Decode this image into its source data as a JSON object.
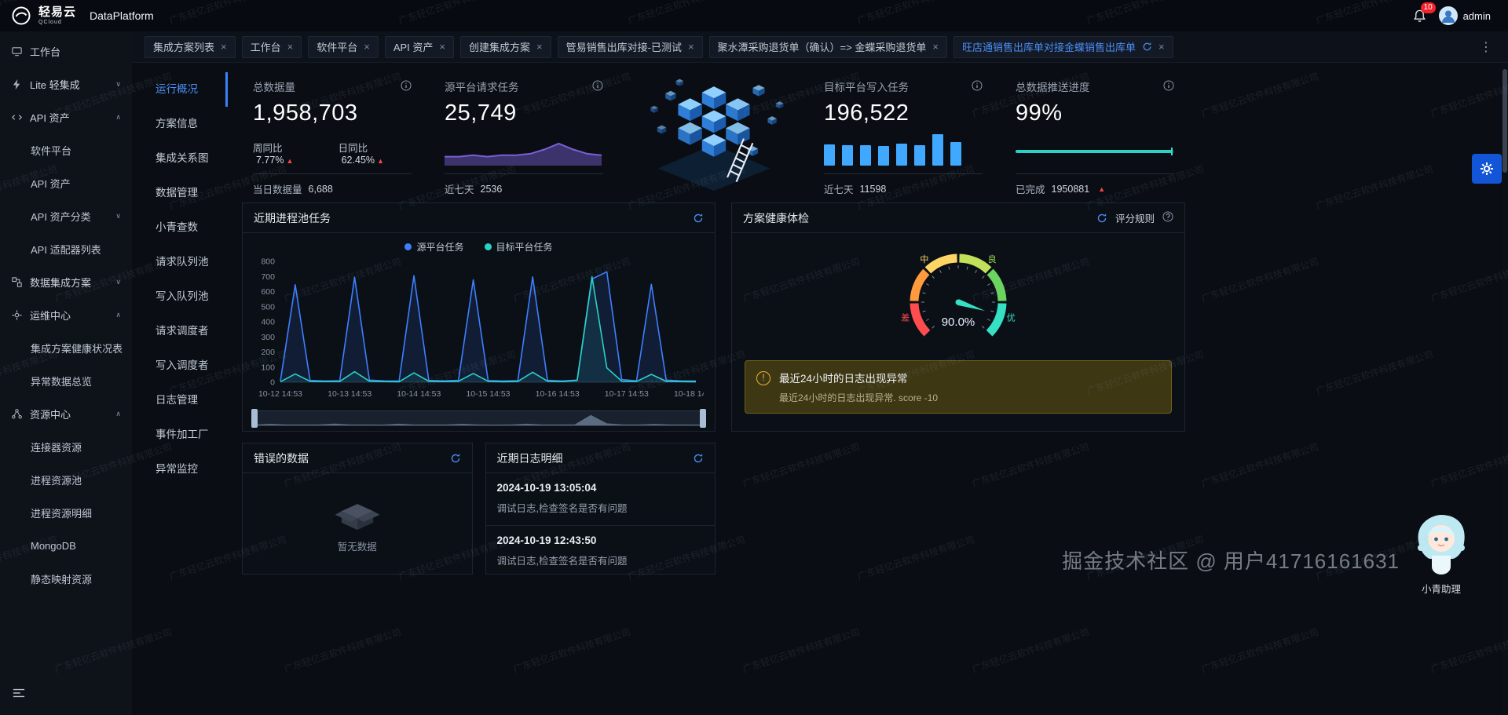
{
  "topbar": {
    "brand": "轻易云",
    "brand_sub": "QCloud",
    "product": "DataPlatform",
    "notification_count": "10",
    "username": "admin"
  },
  "sidebar": {
    "items": [
      {
        "label": "工作台",
        "level": 0,
        "icon": "workbench"
      },
      {
        "label": "Lite 轻集成",
        "level": 0,
        "icon": "lite",
        "chevron": "down"
      },
      {
        "label": "API 资产",
        "level": 0,
        "icon": "api",
        "chevron": "up"
      },
      {
        "label": "软件平台",
        "level": 1
      },
      {
        "label": "API 资产",
        "level": 1
      },
      {
        "label": "API 资产分类",
        "level": 1,
        "chevron": "down"
      },
      {
        "label": "API 适配器列表",
        "level": 1
      },
      {
        "label": "数据集成方案",
        "level": 0,
        "icon": "integration",
        "chevron": "down"
      },
      {
        "label": "运维中心",
        "level": 0,
        "icon": "ops",
        "chevron": "up"
      },
      {
        "label": "集成方案健康状况表",
        "level": 1
      },
      {
        "label": "异常数据总览",
        "level": 1
      },
      {
        "label": "资源中心",
        "level": 0,
        "icon": "resource",
        "chevron": "up"
      },
      {
        "label": "连接器资源",
        "level": 1
      },
      {
        "label": "进程资源池",
        "level": 1
      },
      {
        "label": "进程资源明细",
        "level": 1
      },
      {
        "label": "MongoDB",
        "level": 1
      },
      {
        "label": "静态映射资源",
        "level": 1
      }
    ]
  },
  "tabs": {
    "items": [
      {
        "label": "集成方案列表"
      },
      {
        "label": "工作台"
      },
      {
        "label": "软件平台"
      },
      {
        "label": "API 资产"
      },
      {
        "label": "创建集成方案"
      },
      {
        "label": "管易销售出库对接-已测试"
      },
      {
        "label": "聚水潭采购退货单（确认）=> 金蝶采购退货单"
      },
      {
        "label": "旺店通销售出库单对接金蝶销售出库单",
        "active": true,
        "refreshable": true
      }
    ]
  },
  "subnav": {
    "active_index": 0,
    "items": [
      "运行概况",
      "方案信息",
      "集成关系图",
      "数据管理",
      "小青查数",
      "请求队列池",
      "写入队列池",
      "请求调度者",
      "写入调度者",
      "日志管理",
      "事件加工厂",
      "异常监控"
    ]
  },
  "stats": {
    "total_data": {
      "title": "总数据量",
      "value": "1,958,703",
      "week_label": "周同比",
      "week_value": "7.77%",
      "day_label": "日同比",
      "day_value": "62.45%",
      "footer_label": "当日数据量",
      "footer_value": "6,688"
    },
    "source_requests": {
      "title": "源平台请求任务",
      "value": "25,749",
      "footer_label": "近七天",
      "footer_value": "2536"
    },
    "target_writes": {
      "title": "目标平台写入任务",
      "value": "196,522",
      "footer_label": "近七天",
      "footer_value": "11598"
    },
    "push_progress": {
      "title": "总数据推送进度",
      "value": "99%",
      "footer_label": "已完成",
      "footer_value": "1950881"
    }
  },
  "panels": {
    "process_pool": {
      "title": "近期进程池任务"
    },
    "health": {
      "title": "方案健康体检",
      "rules_label": "评分规则",
      "alert_title": "最近24小时的日志出现异常",
      "alert_desc": "最近24小时的日志出现异常. score -10"
    },
    "error_data": {
      "title": "错误的数据",
      "empty_text": "暂无数据"
    },
    "recent_logs": {
      "title": "近期日志明细",
      "entries": [
        {
          "time": "2024-10-19 13:05:04",
          "text": "调试日志,检查签名是否有问题"
        },
        {
          "time": "2024-10-19 12:43:50",
          "text": "调试日志,检查签名是否有问题"
        }
      ]
    }
  },
  "overlay": {
    "watermark_text": "广东轻亿云软件科技有限公司",
    "community_watermark": "掘金技术社区 @ 用户41716161631",
    "assistant_label": "小青助理"
  },
  "chart_data": [
    {
      "id": "source_spark",
      "type": "area",
      "label": "源平台请求任务趋势",
      "color": "#7a5fd6",
      "values": [
        4,
        4,
        5,
        4,
        5,
        5,
        6,
        9,
        13,
        9,
        6,
        5
      ]
    },
    {
      "id": "target_bars",
      "type": "bar",
      "label": "目标平台写入任务近七天",
      "color": "#40a9ff",
      "values": [
        42,
        40,
        41,
        38,
        44,
        41,
        62,
        47
      ]
    },
    {
      "id": "push_progress",
      "type": "progress",
      "label": "总数据推送进度",
      "color": "#2bd1c5",
      "value": 99,
      "max": 100
    },
    {
      "id": "process_pool",
      "type": "line",
      "title": "近期进程池任务",
      "x_ticks": [
        "10-12 14:53",
        "10-13 14:53",
        "10-14 14:53",
        "10-15 14:53",
        "10-16 14:53",
        "10-17 14:53",
        "10-18 14:53"
      ],
      "ylim": [
        0,
        800
      ],
      "y_ticks": [
        0,
        100,
        200,
        300,
        400,
        500,
        600,
        700,
        800
      ],
      "series": [
        {
          "name": "源平台任务",
          "color": "#3d7fff",
          "values": [
            8,
            645,
            12,
            8,
            10,
            695,
            14,
            9,
            8,
            705,
            12,
            9,
            13,
            678,
            11,
            8,
            10,
            697,
            13,
            8,
            14,
            683,
            731,
            18,
            9,
            648,
            14,
            9,
            8
          ]
        },
        {
          "name": "目标平台任务",
          "color": "#2bd1c5",
          "values": [
            3,
            55,
            6,
            4,
            5,
            70,
            7,
            4,
            3,
            62,
            6,
            4,
            6,
            58,
            6,
            3,
            5,
            66,
            7,
            4,
            12,
            698,
            95,
            7,
            5,
            52,
            6,
            4,
            3
          ]
        }
      ]
    },
    {
      "id": "health_gauge",
      "type": "gauge",
      "title": "方案健康体检",
      "value": 90,
      "display": "90.0%",
      "min": 0,
      "max": 100,
      "labels": [
        "差",
        "中",
        "良",
        "优"
      ],
      "label_colors": [
        "#ff4d4f",
        "#ffd666",
        "#9ad44f",
        "#35e0c4"
      ],
      "segment_colors": [
        "#ff4d4f",
        "#ff9a3d",
        "#ffd666",
        "#c3e05a",
        "#6bd45f",
        "#35e0c4"
      ]
    }
  ]
}
